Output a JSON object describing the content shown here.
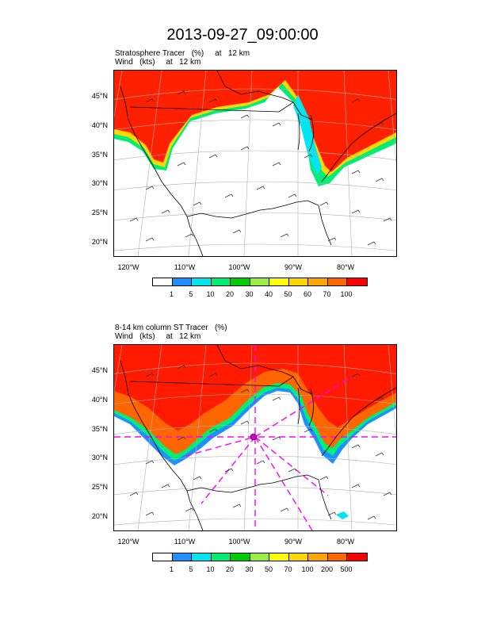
{
  "title": "2013-09-27_09:00:00",
  "panels": [
    {
      "title_line1": "Stratosphere Tracer   (%)     at   12 km",
      "title_line2": "Wind   (kts)     at   12 km",
      "lat_labels": [
        "45°N",
        "40°N",
        "35°N",
        "30°N",
        "25°N",
        "20°N"
      ],
      "lon_labels": [
        "120°W",
        "110°W",
        "100°W",
        "90°W",
        "80°W"
      ],
      "colorbar": {
        "colors": [
          "#ffffff",
          "#1e90ff",
          "#00e5ee",
          "#00ee76",
          "#00cd00",
          "#9aed44",
          "#ffff00",
          "#ffd700",
          "#ffa500",
          "#ff6600",
          "#ff0000"
        ],
        "labels": [
          "1",
          "5",
          "10",
          "20",
          "30",
          "40",
          "50",
          "60",
          "70",
          "100"
        ]
      }
    },
    {
      "title_line1": "8-14 km column ST Tracer   (%)",
      "title_line2": "Wind   (kts)     at   12 km",
      "lat_labels": [
        "45°N",
        "40°N",
        "35°N",
        "30°N",
        "25°N",
        "20°N"
      ],
      "lon_labels": [
        "120°W",
        "110°W",
        "100°W",
        "90°W",
        "80°W"
      ],
      "colorbar": {
        "colors": [
          "#ffffff",
          "#1e90ff",
          "#00e5ee",
          "#00ee76",
          "#00cd00",
          "#9aed44",
          "#ffff00",
          "#ffd700",
          "#ffa500",
          "#ff6600",
          "#ff0000"
        ],
        "labels": [
          "1",
          "5",
          "10",
          "20",
          "30",
          "50",
          "70",
          "100",
          "200",
          "500"
        ]
      }
    }
  ]
}
